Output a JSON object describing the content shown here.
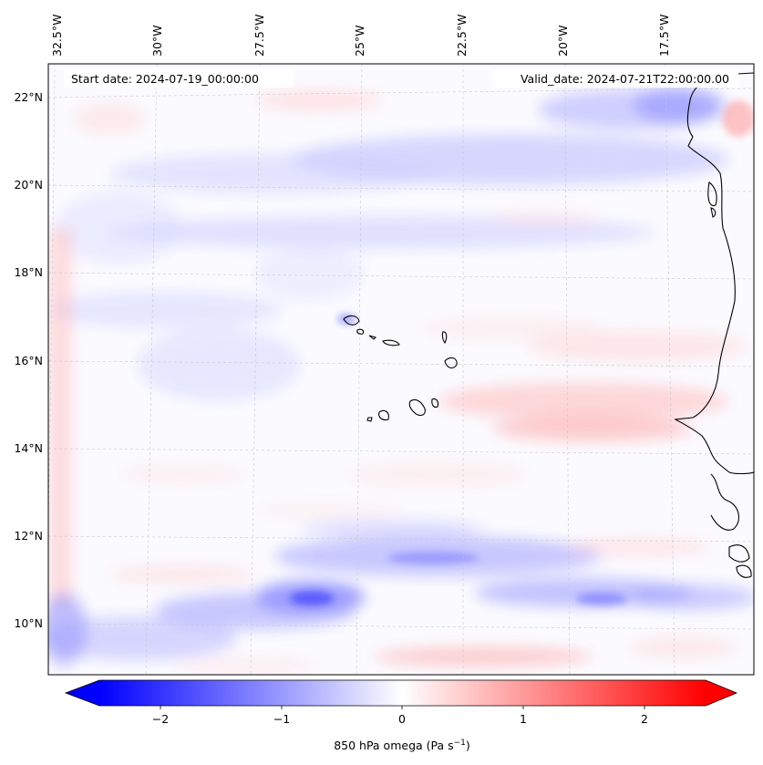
{
  "map": {
    "start_label": "Start date: 2024-07-19_00:00:00",
    "valid_label": "Valid_date: 2024-07-21T22:00:00.00",
    "lon_ticks": [
      "32.5°W",
      "30°W",
      "27.5°W",
      "25°W",
      "22.5°W",
      "20°W",
      "17.5°W"
    ],
    "lat_ticks": [
      "22°N",
      "20°N",
      "18°N",
      "16°N",
      "14°N",
      "12°N",
      "10°N"
    ],
    "colorbar": {
      "ticks": [
        "−2",
        "−1",
        "0",
        "1",
        "2"
      ],
      "label_prefix": "850 hPa omega (Pa s",
      "label_exp": "−1",
      "label_suffix": ")",
      "min": -2.5,
      "max": 2.5
    },
    "colors": {
      "negative": "#0000ff",
      "neutral": "#ffffff",
      "positive": "#ff0000",
      "coastline": "#000000",
      "gridline": "#c8c8c8"
    }
  }
}
